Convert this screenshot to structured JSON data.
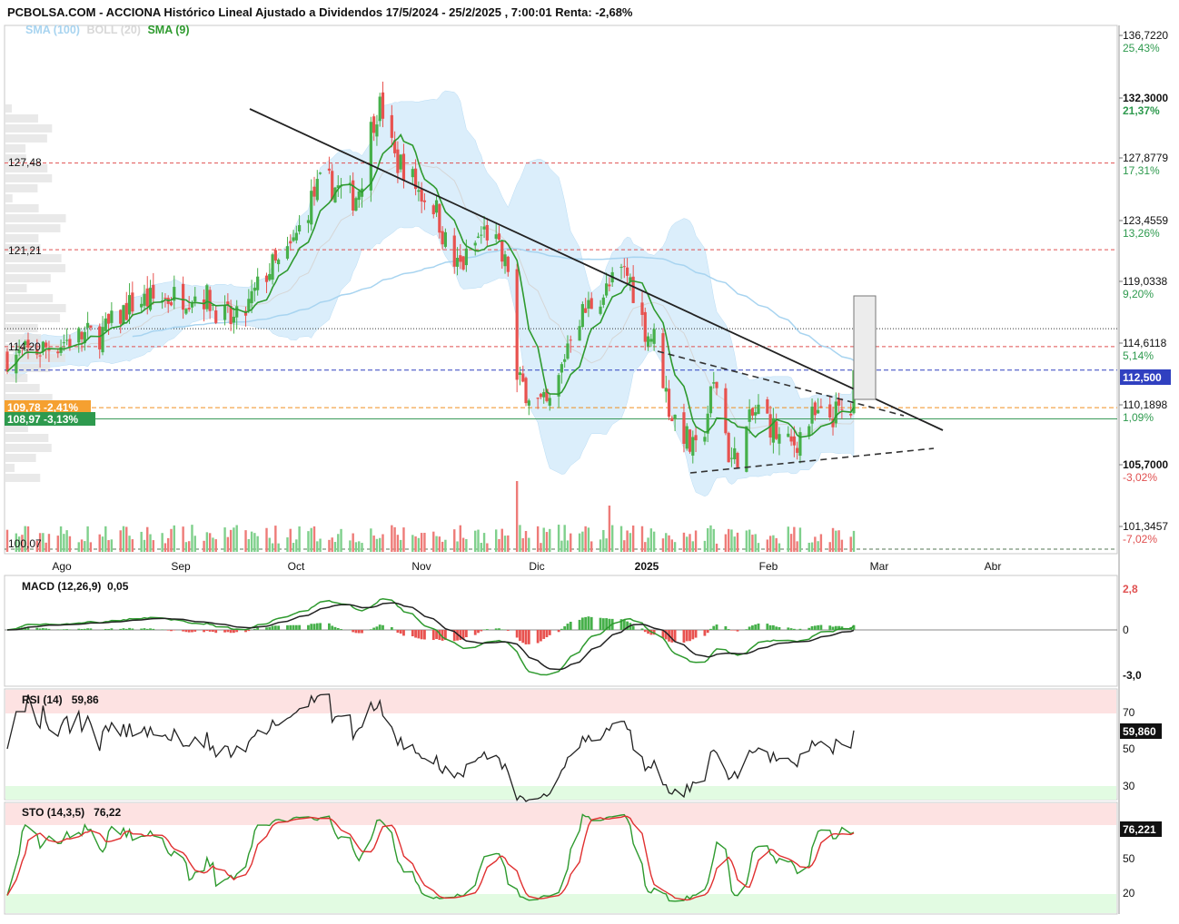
{
  "header": {
    "title": "PCBOLSA.COM - ACCIONA Histórico Lineal Ajustado a Dividendos 17/5/2024 - 25/2/2025 , 7:00:01 Renta: -2,68%"
  },
  "legend": [
    {
      "label": "SMA (100)",
      "color": "#a8d4f0"
    },
    {
      "label": "BOLL (20)",
      "color": "#d0d0d0"
    },
    {
      "label": "SMA (9)",
      "color": "#2e9a2e"
    }
  ],
  "colors": {
    "up": "#46b04a",
    "down": "#e8524f",
    "volume_up": "#7fd08c",
    "volume_down": "#ee7b78",
    "boll_fill": "#cce7f9",
    "sma100": "#a8d4f0",
    "sma9": "#2e9a2e",
    "trendline": "#222222",
    "red_level": "#e05050",
    "blue_level": "#3040c0",
    "orange_level": "#f09020",
    "green_level": "#3a9a5a",
    "current_badge": "#2e9a4e"
  },
  "price_axis": {
    "ticks": [
      {
        "value": "136,7220",
        "pct": "25,43%"
      },
      {
        "value": "132,3000",
        "pct": "21,37%"
      },
      {
        "value": "127,8779",
        "pct": "17,31%"
      },
      {
        "value": "123,4559",
        "pct": "13,26%"
      },
      {
        "value": "119,0338",
        "pct": "9,20%"
      },
      {
        "value": "114,6118",
        "pct": "5,14%"
      },
      {
        "value": "110,1898",
        "pct": "1,09%"
      },
      {
        "value": "105,7000",
        "pct": "-3,02%"
      },
      {
        "value": "101,3457",
        "pct": "-7,02%"
      }
    ],
    "current_price_badge": "112,500"
  },
  "level_labels": {
    "l127": "127,48",
    "l121": "121,21",
    "l114": "114,20",
    "l109": "109,78 -2,41%",
    "l108": "108,97 -3,13%",
    "l100": "100,07"
  },
  "x_axis": {
    "months": [
      "Ago",
      "Sep",
      "Oct",
      "Nov",
      "Dic",
      "2025",
      "Feb",
      "Mar",
      "Abr"
    ]
  },
  "macd": {
    "title": "MACD (12,26,9)",
    "value": "0,05",
    "ticks": [
      "2,8",
      "0",
      "-3,0"
    ]
  },
  "rsi": {
    "title": "RSI (14)",
    "value": "59,86",
    "ticks": [
      "70",
      "50",
      "30"
    ],
    "badge": "59,860"
  },
  "sto": {
    "title": "STO (14,3,5)",
    "value": "76,22",
    "ticks": [
      "50",
      "20"
    ],
    "badge": "76,221"
  },
  "chart_data": {
    "type": "candlestick",
    "title": "ACCIONA Histórico Lineal Ajustado a Dividendos 17/5/2024 - 25/2/2025",
    "x_start": "2024-05-17",
    "x_end": "2025-02-25",
    "y_range": [
      100.07,
      136.72
    ],
    "horizontal_levels": {
      "red_dashed": [
        127.48,
        121.21,
        114.2
      ],
      "black_dotted": 115.5,
      "blue_dashed": 112.5,
      "orange_dashed": 109.78,
      "green_solid": 108.97,
      "dark_dashed": 100.07
    },
    "close_series": [
      {
        "date": "2024-05-17",
        "close": 113.5
      },
      {
        "date": "2024-06-15",
        "close": 115.0
      },
      {
        "date": "2024-07-01",
        "close": 117.5
      },
      {
        "date": "2024-07-20",
        "close": 118.0
      },
      {
        "date": "2024-08-01",
        "close": 116.0
      },
      {
        "date": "2024-08-15",
        "close": 120.0
      },
      {
        "date": "2024-09-01",
        "close": 126.0
      },
      {
        "date": "2024-09-10",
        "close": 125.0
      },
      {
        "date": "2024-09-19",
        "close": 131.5
      },
      {
        "date": "2024-09-25",
        "close": 127.5
      },
      {
        "date": "2024-10-05",
        "close": 125.0
      },
      {
        "date": "2024-10-15",
        "close": 120.0
      },
      {
        "date": "2024-10-25",
        "close": 122.5
      },
      {
        "date": "2024-11-01",
        "close": 120.0
      },
      {
        "date": "2024-11-04",
        "close": 111.5
      },
      {
        "date": "2024-11-14",
        "close": 109.8
      },
      {
        "date": "2024-11-25",
        "close": 116.5
      },
      {
        "date": "2024-12-02",
        "close": 118.0
      },
      {
        "date": "2024-12-10",
        "close": 119.5
      },
      {
        "date": "2024-12-19",
        "close": 115.0
      },
      {
        "date": "2024-12-27",
        "close": 109.0
      },
      {
        "date": "2025-01-03",
        "close": 106.5
      },
      {
        "date": "2025-01-10",
        "close": 111.5
      },
      {
        "date": "2025-01-15",
        "close": 106.0
      },
      {
        "date": "2025-01-24",
        "close": 109.5
      },
      {
        "date": "2025-02-03",
        "close": 107.0
      },
      {
        "date": "2025-02-12",
        "close": 109.0
      },
      {
        "date": "2025-02-24",
        "close": 109.5
      },
      {
        "date": "2025-02-25",
        "close": 112.5
      }
    ],
    "sto": {
      "k": 76.22
    },
    "rsi": {
      "value": 59.86
    },
    "macd": {
      "value": 0.05
    }
  }
}
